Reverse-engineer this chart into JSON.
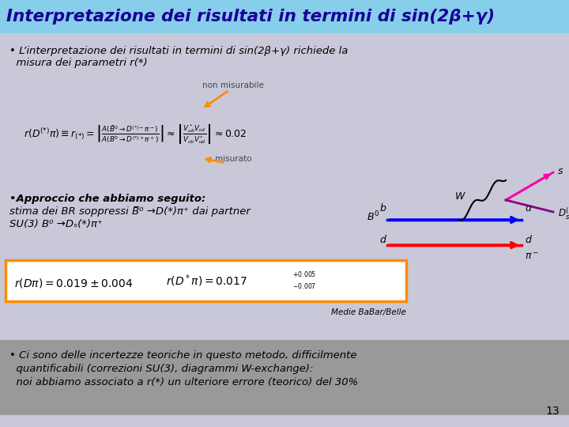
{
  "title": "Interpretazione dei risultati in termini di sin(2β+γ)",
  "title_color": "#1a0096",
  "title_bg": "#87CEEB",
  "bg_color": "#C8C8D8",
  "bullet1_line1": "• L’interpretazione dei risultati in termini di sin(2β+γ) richiede la",
  "bullet1_line2": "  misura dei parametri r(*)",
  "label_non_mis": "non misurabile",
  "label_mis": "misurato",
  "bullet2_line1": "•Approccio che abbiamo seguito:",
  "bullet2_line2": "stima dei BR soppressi B̅⁰ →D(*)π⁺ dai partner",
  "bullet2_line3": "SU(3) B⁰ →Dₛ(*)π⁺",
  "medie": "Medie BaBar/Belle",
  "bullet3_line1": "• Ci sono delle incertezze teoriche in questo metodo, difficilmente",
  "bullet3_line2": "  quantificabili (correzioni SU(3), diagrammi W-exchange):",
  "bullet3_line3": "  noi abbiamo associato a r(*) un ulteriore errore (teorico) del 30%",
  "page_num": "13",
  "box_border_color": "#FF8C00",
  "bottom_bg": "#999999",
  "arrow_color": "#FF8C00"
}
